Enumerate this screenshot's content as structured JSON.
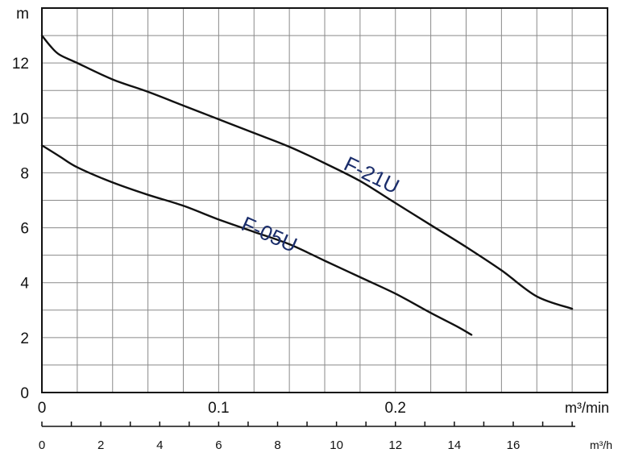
{
  "chart_data": {
    "type": "line",
    "y_unit": "m",
    "x_unit_top": "m³/min",
    "x_unit_bottom": "m³/h",
    "xlim_top": [
      0,
      0.32
    ],
    "xlim_bottom": [
      0,
      19.2
    ],
    "ylim": [
      0,
      14
    ],
    "x_ticks_top": [
      {
        "label": "0",
        "value": 0
      },
      {
        "label": "0.1",
        "value": 0.1
      },
      {
        "label": "0.2",
        "value": 0.2
      }
    ],
    "x_ticks_bottom": [
      {
        "label": "0",
        "value": 0
      },
      {
        "label": "2",
        "value": 2
      },
      {
        "label": "4",
        "value": 4
      },
      {
        "label": "6",
        "value": 6
      },
      {
        "label": "8",
        "value": 8
      },
      {
        "label": "10",
        "value": 10
      },
      {
        "label": "12",
        "value": 12
      },
      {
        "label": "14",
        "value": 14
      },
      {
        "label": "16",
        "value": 16
      }
    ],
    "y_ticks": [
      {
        "label": "0",
        "value": 0
      },
      {
        "label": "2",
        "value": 2
      },
      {
        "label": "4",
        "value": 4
      },
      {
        "label": "6",
        "value": 6
      },
      {
        "label": "8",
        "value": 8
      },
      {
        "label": "10",
        "value": 10
      },
      {
        "label": "12",
        "value": 12
      }
    ],
    "grid": true,
    "series": [
      {
        "name": "F-21U",
        "color": "#111111",
        "label_color": "#1a2d6b",
        "label_rotation_deg": 26,
        "label_at": [
          0.17,
          8.15
        ],
        "points": [
          [
            0,
            13
          ],
          [
            0.005,
            12.6
          ],
          [
            0.01,
            12.3
          ],
          [
            0.02,
            12
          ],
          [
            0.04,
            11.4
          ],
          [
            0.06,
            10.95
          ],
          [
            0.08,
            10.45
          ],
          [
            0.1,
            9.95
          ],
          [
            0.12,
            9.45
          ],
          [
            0.14,
            8.95
          ],
          [
            0.16,
            8.35
          ],
          [
            0.18,
            7.7
          ],
          [
            0.2,
            6.9
          ],
          [
            0.22,
            6.1
          ],
          [
            0.24,
            5.3
          ],
          [
            0.26,
            4.45
          ],
          [
            0.28,
            3.5
          ],
          [
            0.3,
            3.05
          ]
        ]
      },
      {
        "name": "F-05U",
        "color": "#111111",
        "label_color": "#1a2d6b",
        "label_rotation_deg": 24,
        "label_at": [
          0.112,
          5.95
        ],
        "points": [
          [
            0,
            9
          ],
          [
            0.01,
            8.6
          ],
          [
            0.02,
            8.2
          ],
          [
            0.04,
            7.65
          ],
          [
            0.06,
            7.2
          ],
          [
            0.08,
            6.8
          ],
          [
            0.1,
            6.3
          ],
          [
            0.12,
            5.85
          ],
          [
            0.14,
            5.4
          ],
          [
            0.16,
            4.8
          ],
          [
            0.18,
            4.2
          ],
          [
            0.2,
            3.6
          ],
          [
            0.22,
            2.9
          ],
          [
            0.235,
            2.4
          ],
          [
            0.243,
            2.1
          ]
        ]
      }
    ]
  }
}
